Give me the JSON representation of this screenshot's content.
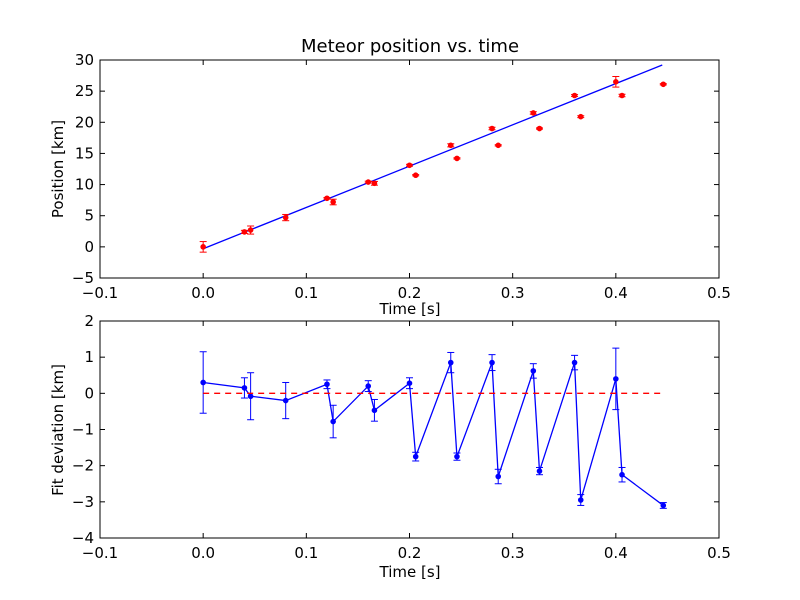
{
  "colors": {
    "fit_line": "#0000ff",
    "observed": "#ff0000",
    "deviation": "#0000ff",
    "zero_line": "#ff0000"
  },
  "chart_data": [
    {
      "type": "scatter",
      "title": "Meteor position vs. time",
      "xlabel": "Time [s]",
      "ylabel": "Position [km]",
      "xlim": [
        -0.1,
        0.5
      ],
      "ylim": [
        -5,
        30
      ],
      "xticks": [
        "−0.1",
        "0.0",
        "0.1",
        "0.2",
        "0.3",
        "0.4",
        "0.5"
      ],
      "yticks": [
        "−5",
        "0",
        "5",
        "10",
        "15",
        "20",
        "25",
        "30"
      ],
      "grid": false,
      "series": [
        {
          "kind": "line",
          "x": [
            0.0,
            0.445
          ],
          "y": [
            -0.3,
            29.2
          ]
        },
        {
          "kind": "errorbar",
          "x": [
            0.0,
            0.04,
            0.046,
            0.08,
            0.12,
            0.126,
            0.16,
            0.166,
            0.2,
            0.206,
            0.24,
            0.246,
            0.28,
            0.286,
            0.32,
            0.326,
            0.36,
            0.366,
            0.4,
            0.406,
            0.446
          ],
          "y": [
            0.0,
            2.4,
            2.7,
            4.7,
            7.8,
            7.2,
            10.4,
            10.2,
            13.1,
            11.5,
            16.3,
            14.2,
            19.0,
            16.3,
            21.5,
            19.0,
            24.3,
            20.9,
            26.5,
            24.3,
            26.1
          ],
          "err": [
            0.85,
            0.25,
            0.65,
            0.5,
            0.12,
            0.45,
            0.15,
            0.3,
            0.15,
            0.1,
            0.25,
            0.1,
            0.2,
            0.1,
            0.2,
            0.1,
            0.15,
            0.15,
            0.85,
            0.2,
            0.1
          ]
        }
      ]
    },
    {
      "type": "line",
      "xlabel": "Time [s]",
      "ylabel": "Fit deviation [km]",
      "xlim": [
        -0.1,
        0.5
      ],
      "ylim": [
        -4,
        2
      ],
      "xticks": [
        "−0.1",
        "0.0",
        "0.1",
        "0.2",
        "0.3",
        "0.4",
        "0.5"
      ],
      "yticks": [
        "−4",
        "−3",
        "−2",
        "−1",
        "0",
        "1",
        "2"
      ],
      "grid": false,
      "series": [
        {
          "kind": "errorbar-line",
          "x": [
            0.0,
            0.04,
            0.046,
            0.08,
            0.12,
            0.126,
            0.16,
            0.166,
            0.2,
            0.206,
            0.24,
            0.246,
            0.28,
            0.286,
            0.32,
            0.326,
            0.36,
            0.366,
            0.4,
            0.406,
            0.446
          ],
          "y": [
            0.3,
            0.15,
            -0.08,
            -0.2,
            0.25,
            -0.78,
            0.2,
            -0.47,
            0.28,
            -1.75,
            0.85,
            -1.75,
            0.85,
            -2.3,
            0.62,
            -2.15,
            0.85,
            -2.95,
            0.4,
            -2.25,
            -3.1
          ],
          "err": [
            0.85,
            0.28,
            0.65,
            0.5,
            0.12,
            0.45,
            0.15,
            0.3,
            0.15,
            0.12,
            0.28,
            0.1,
            0.22,
            0.2,
            0.2,
            0.1,
            0.2,
            0.15,
            0.85,
            0.2,
            0.08
          ]
        },
        {
          "kind": "dashed",
          "x": [
            0.0,
            0.445
          ],
          "y": [
            0.0,
            0.0
          ]
        }
      ]
    }
  ]
}
